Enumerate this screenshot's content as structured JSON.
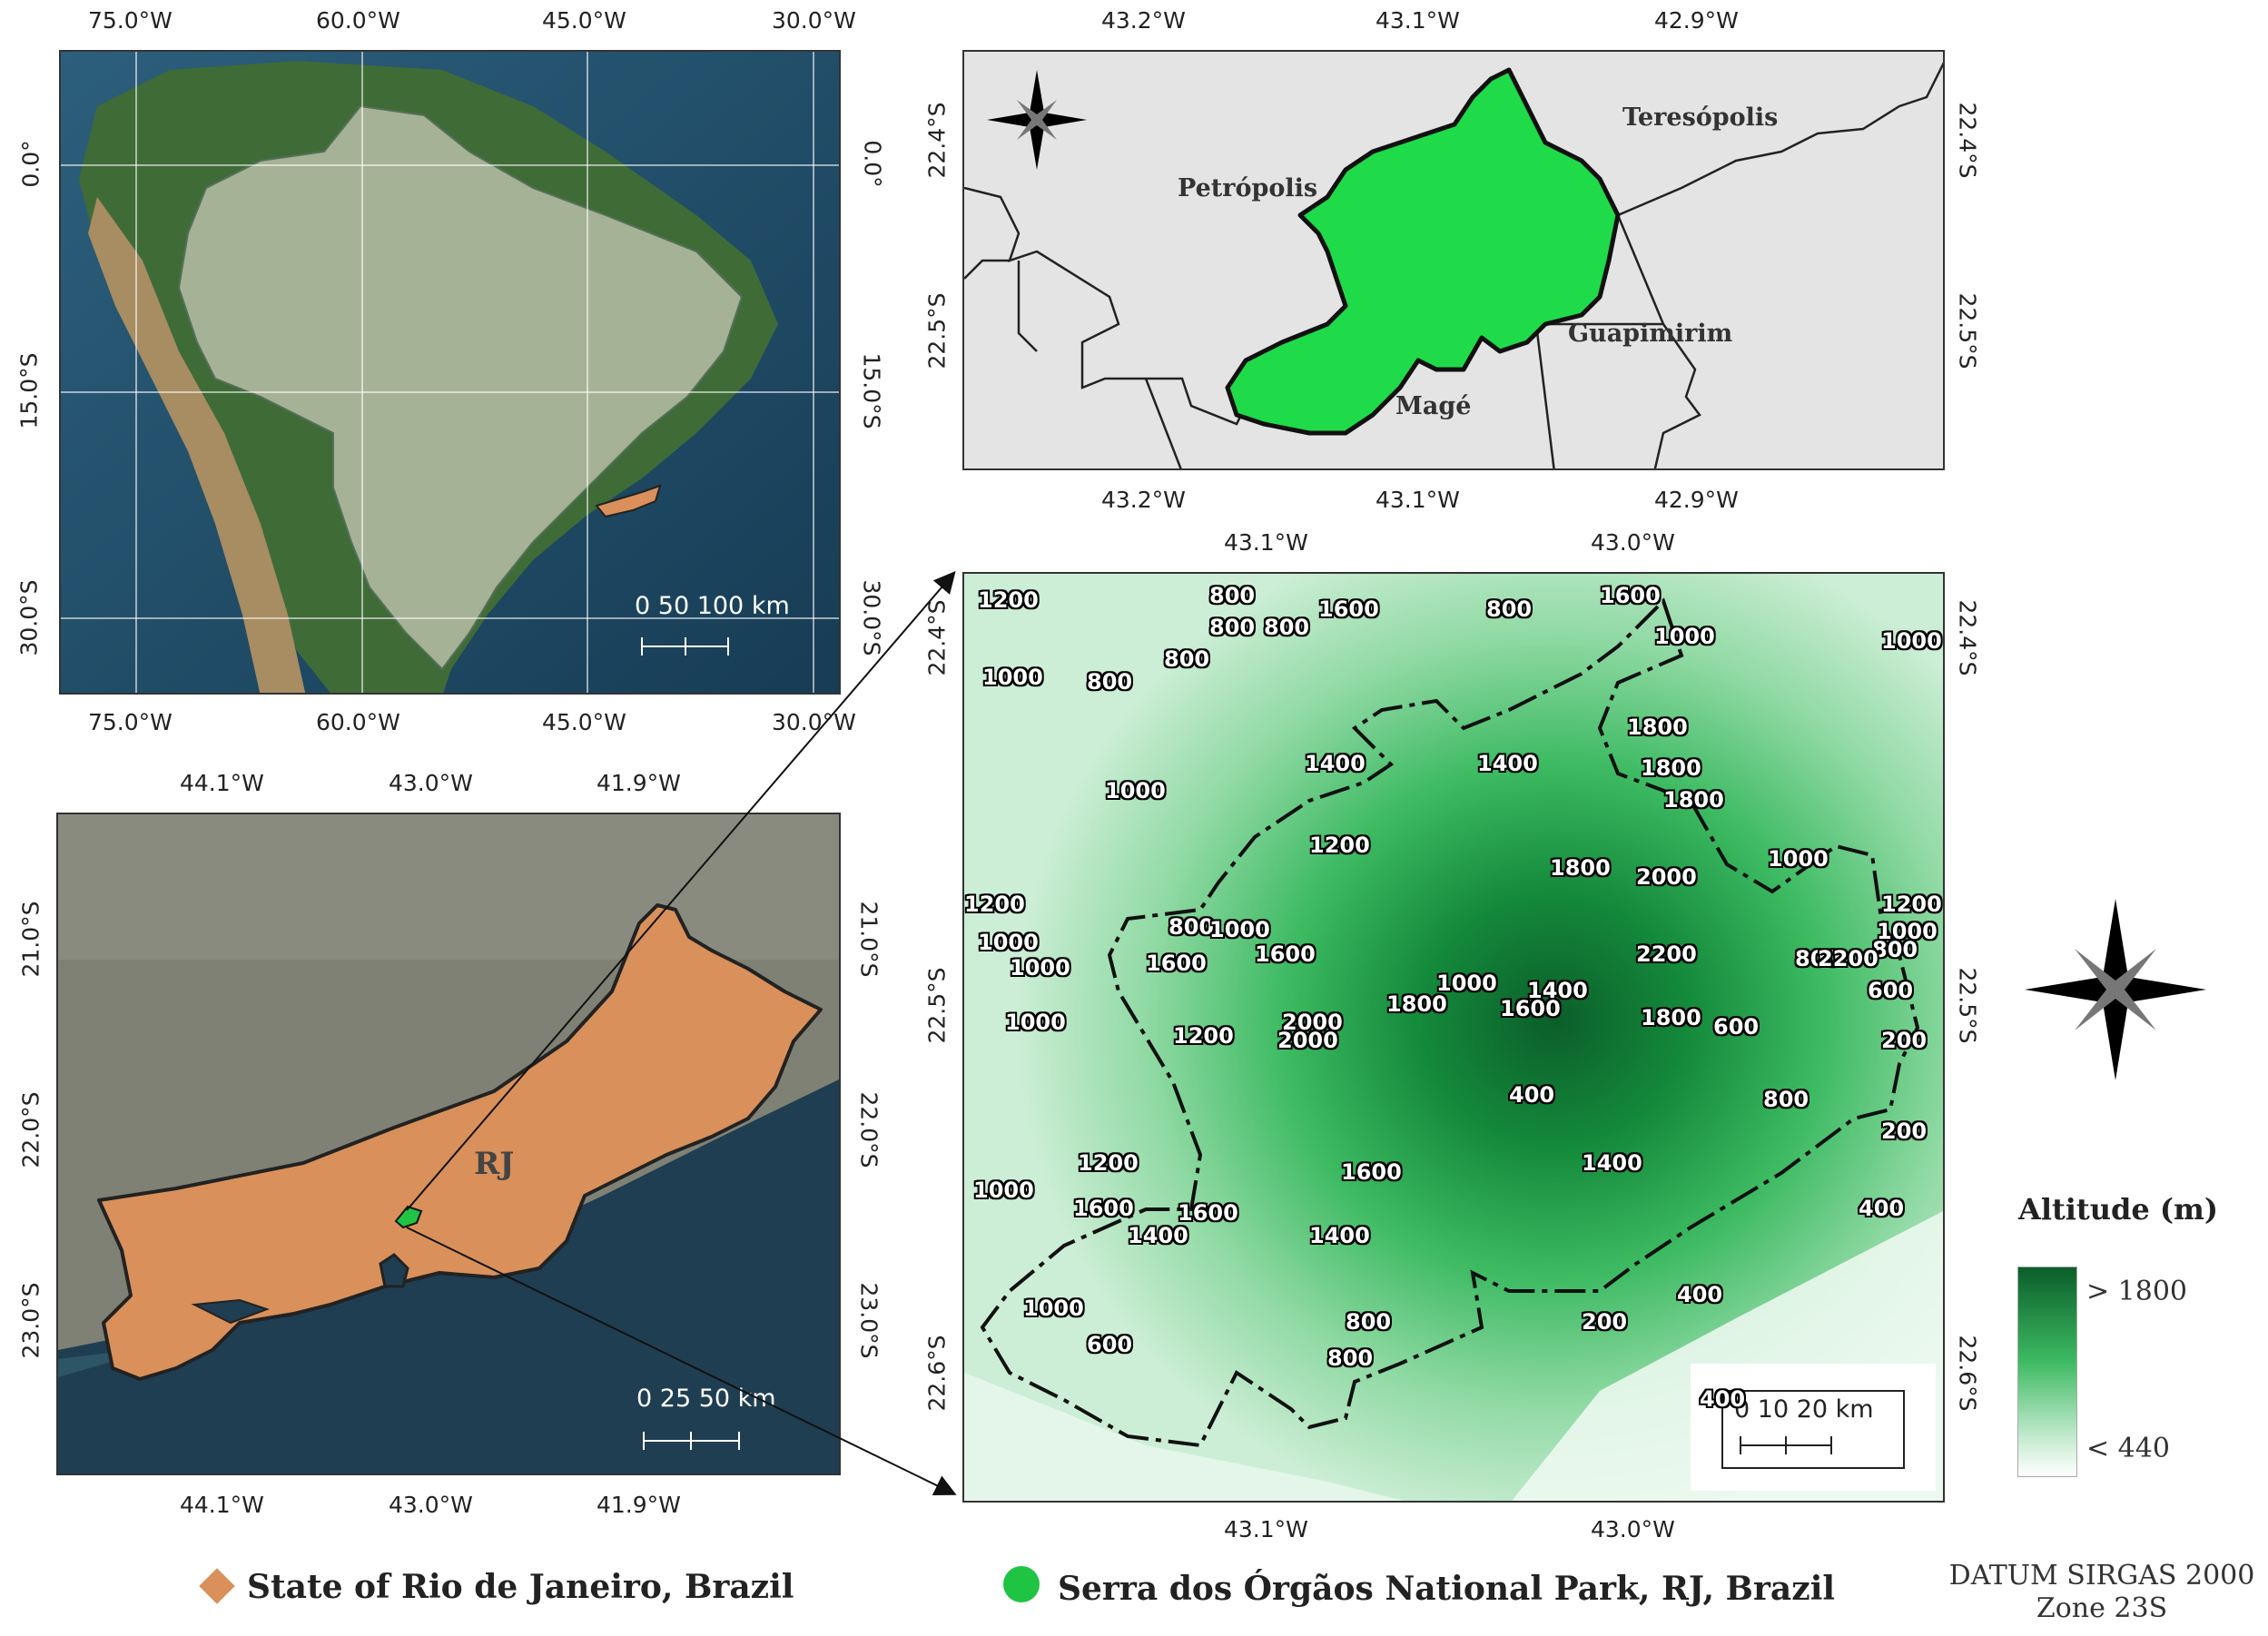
{
  "south_america_map": {
    "top_ticks": [
      "75.0°W",
      "60.0°W",
      "45.0°W",
      "30.0°W"
    ],
    "bottom_ticks": [
      "75.0°W",
      "60.0°W",
      "45.0°W",
      "30.0°W"
    ],
    "left_ticks": [
      "0.0°",
      "15.0°S",
      "30.0°S"
    ],
    "right_ticks": [
      "0.0°",
      "15.0°S",
      "30.0°S"
    ],
    "scale_label": "0   50 100 km"
  },
  "rj_map": {
    "top_ticks": [
      "44.1°W",
      "43.0°W",
      "41.9°W"
    ],
    "bottom_ticks": [
      "44.1°W",
      "43.0°W",
      "41.9°W"
    ],
    "left_ticks": [
      "21.0°S",
      "22.0°S",
      "23.0°S"
    ],
    "right_ticks": [
      "21.0°S",
      "22.0°S",
      "23.0°S"
    ],
    "state_label": "RJ",
    "scale_label": "0   25   50 km"
  },
  "municipal_map": {
    "top_ticks": [
      "43.2°W",
      "43.1°W",
      "42.9°W"
    ],
    "bottom_ticks": [
      "43.2°W",
      "43.1°W",
      "42.9°W"
    ],
    "left_ticks": [
      "22.4°S",
      "22.5°S"
    ],
    "right_ticks": [
      "22.4°S",
      "22.5°S"
    ],
    "municipalities": [
      "Petrópolis",
      "Teresópolis",
      "Guapimirim",
      "Magé"
    ]
  },
  "altitude_map": {
    "top_ticks": [
      "43.1°W",
      "43.0°W"
    ],
    "bottom_ticks": [
      "43.1°W",
      "43.0°W"
    ],
    "left_ticks": [
      "22.4°S",
      "22.5°S",
      "22.6°S"
    ],
    "right_ticks": [
      "22.4°S",
      "22.5°S",
      "22.6°S"
    ],
    "scale_label": "0   10  20 km",
    "contour_labels": [
      "1200",
      "800",
      "800",
      "800",
      "800",
      "1600",
      "1000",
      "1000",
      "800",
      "800",
      "1600",
      "1000",
      "1800",
      "1000",
      "1400",
      "1400",
      "1800",
      "1200",
      "1800",
      "1200",
      "1000",
      "1000",
      "1800",
      "2000",
      "1000",
      "800",
      "1200",
      "800",
      "1000",
      "2200",
      "800",
      "1000",
      "2200",
      "1600",
      "600",
      "1000",
      "1400",
      "1600",
      "2000",
      "1000",
      "1200",
      "1800",
      "1800",
      "600",
      "2000",
      "1600",
      "1200",
      "800",
      "400",
      "1000",
      "200",
      "1600",
      "1400",
      "1600",
      "1600",
      "1400",
      "1400",
      "400",
      "200",
      "1000",
      "600",
      "800",
      "200",
      "400",
      "800",
      "400"
    ]
  },
  "legend": {
    "title": "Altitude (m)",
    "high": "> 1800",
    "low": "< 440",
    "color_high": "#0b5e2a",
    "color_low": "#ffffff"
  },
  "bottom_legend": {
    "state_item": "State of Rio de Janeiro, Brazil",
    "state_color": "#d9905a",
    "park_item": "Serra dos Órgãos National Park, RJ, Brazil",
    "park_color": "#1fc443"
  },
  "datum": {
    "line1": "DATUM SIRGAS 2000",
    "line2": "Zone 23S"
  }
}
